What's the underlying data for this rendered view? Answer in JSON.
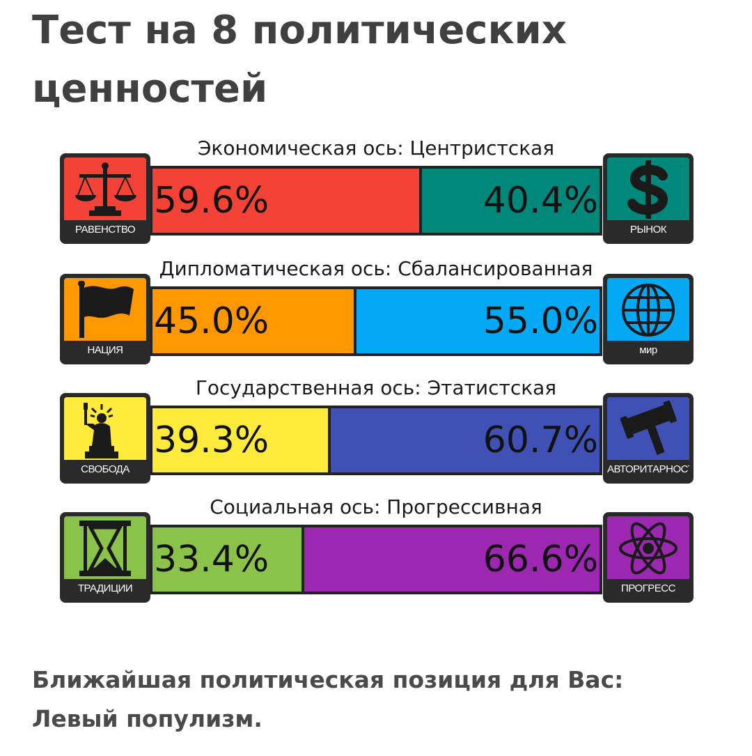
{
  "page": {
    "title": "Тест на 8 политических ценностей"
  },
  "chart_data": {
    "type": "bar",
    "orientation": "horizontal-stacked",
    "axes": [
      {
        "label": "Экономическая ось: Центристская",
        "left": {
          "name": "РАВЕНСТВО",
          "value": 59.6,
          "display": "59.6%",
          "color": "#f44336",
          "icon": "scales-icon"
        },
        "right": {
          "name": "РЫНОК",
          "value": 40.4,
          "display": "40.4%",
          "color": "#00897b",
          "icon": "dollar-icon"
        }
      },
      {
        "label": "Дипломатическая ось: Сбалансированная",
        "left": {
          "name": "НАЦИЯ",
          "value": 45.0,
          "display": "45.0%",
          "color": "#ff9800",
          "icon": "flag-icon"
        },
        "right": {
          "name": "мир",
          "value": 55.0,
          "display": "55.0%",
          "color": "#03a9f4",
          "icon": "globe-icon"
        }
      },
      {
        "label": "Государственная ось: Этатистская",
        "left": {
          "name": "СВОБОДА",
          "value": 39.3,
          "display": "39.3%",
          "color": "#ffeb3b",
          "icon": "statue-of-liberty-icon"
        },
        "right": {
          "name": "АВТОРИТАРНОСТЬ",
          "value": 60.7,
          "display": "60.7%",
          "color": "#3f51b5",
          "icon": "gavel-icon"
        }
      },
      {
        "label": "Социальная ось: Прогрессивная",
        "left": {
          "name": "ТРАДИЦИИ",
          "value": 33.4,
          "display": "33.4%",
          "color": "#8bc34a",
          "icon": "hourglass-icon"
        },
        "right": {
          "name": "ПРОГРЕСС",
          "value": 66.6,
          "display": "66.6%",
          "color": "#9c27b0",
          "icon": "atom-icon"
        }
      }
    ]
  },
  "result": {
    "label": "Ближайшая политическая позиция для Вас:",
    "value": "Левый популизм."
  }
}
